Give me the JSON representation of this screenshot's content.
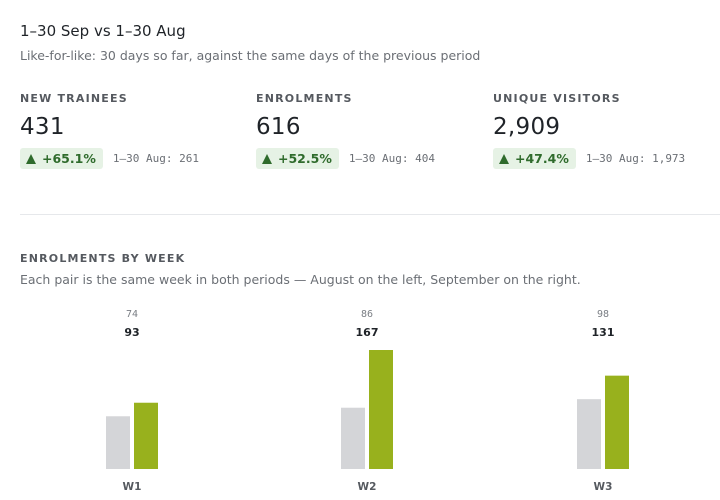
{
  "header": {
    "title": "1–30 Sep vs 1–30 Aug",
    "subtitle": "Like-for-like: 30 days so far, against the same days of the previous period"
  },
  "kpis": [
    {
      "label": "NEW TRAINEES",
      "value": "431",
      "delta": "+65.1%",
      "previous": "1–30 Aug: 261"
    },
    {
      "label": "ENROLMENTS",
      "value": "616",
      "delta": "+52.5%",
      "previous": "1–30 Aug: 404"
    },
    {
      "label": "UNIQUE VISITORS",
      "value": "2,909",
      "delta": "+47.4%",
      "previous": "1–30 Aug: 1,973"
    }
  ],
  "section": {
    "title": "ENROLMENTS BY WEEK",
    "description": "Each pair is the same week in both periods — August on the left, September on the right."
  },
  "colors": {
    "previous_bar": "#d4d5d8",
    "current_bar": "#98b11d",
    "delta_bg": "#e6f2e5",
    "delta_text": "#2f6b2c"
  },
  "chart_data": {
    "type": "bar",
    "categories": [
      "W1",
      "W2",
      "W3"
    ],
    "series": [
      {
        "values": [
          74,
          86,
          98
        ]
      },
      {
        "values": [
          93,
          167,
          131
        ]
      }
    ],
    "ylim": [
      0,
      167
    ],
    "grid": false
  }
}
